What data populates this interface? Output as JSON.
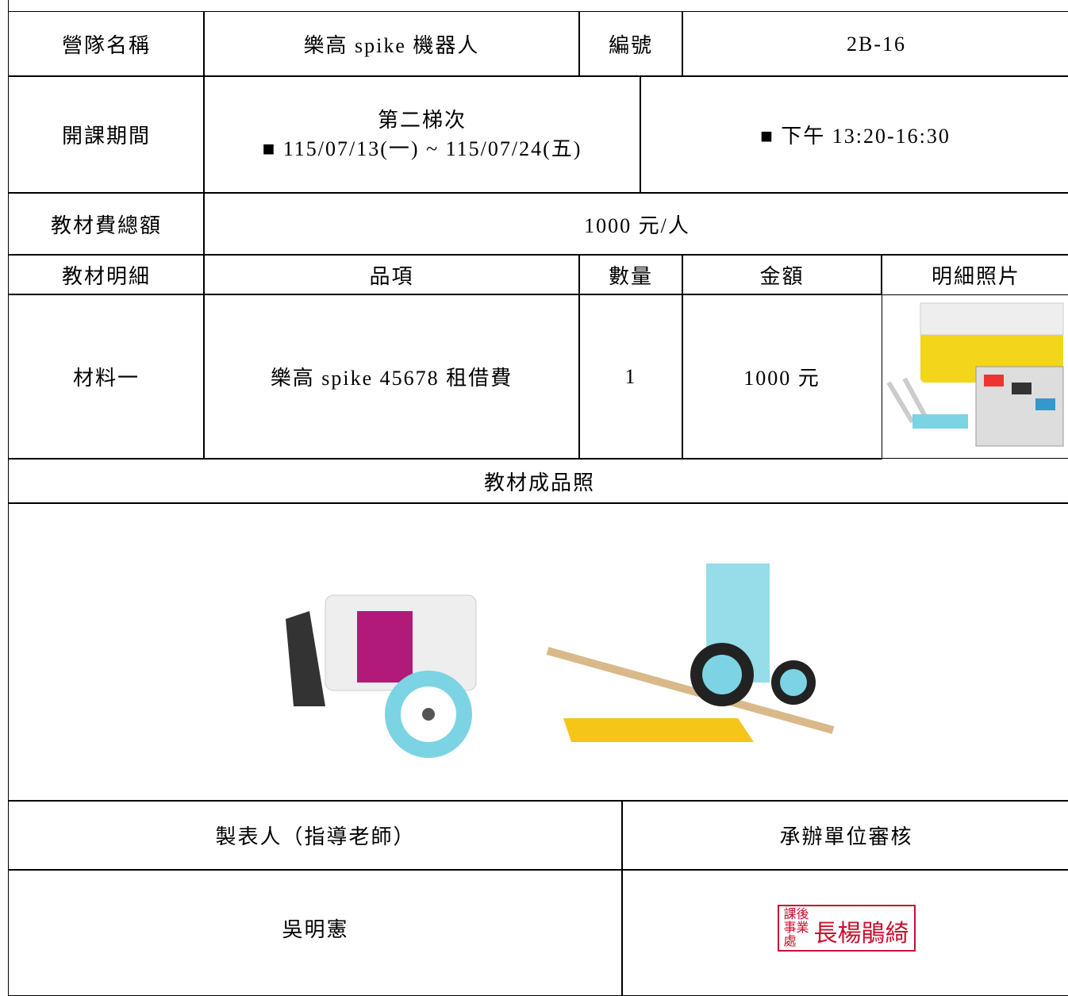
{
  "table": {
    "rows": [
      [
        "營隊名稱",
        "樂高 spike 機器人",
        "編號",
        "2B-16"
      ],
      [
        "開課期間",
        "第二梯次",
        "■ 115/07/13(一) ~ 115/07/24(五)",
        "■ 下午 13:20-16:30"
      ],
      [
        "教材費總額",
        "1000 元/人"
      ],
      [
        "教材明細",
        "品項",
        "數量",
        "金額",
        "明細照片"
      ],
      [
        "材料一",
        "樂高 spike 45678 租借費",
        "1",
        "1000 元"
      ],
      [
        "教材成品照"
      ],
      [
        "製表人（指導老師）",
        "承辦單位審核"
      ],
      [
        "吳明憲"
      ]
    ]
  },
  "stamp": {
    "office": "課後事業處",
    "name": "長楊鵑綺"
  }
}
